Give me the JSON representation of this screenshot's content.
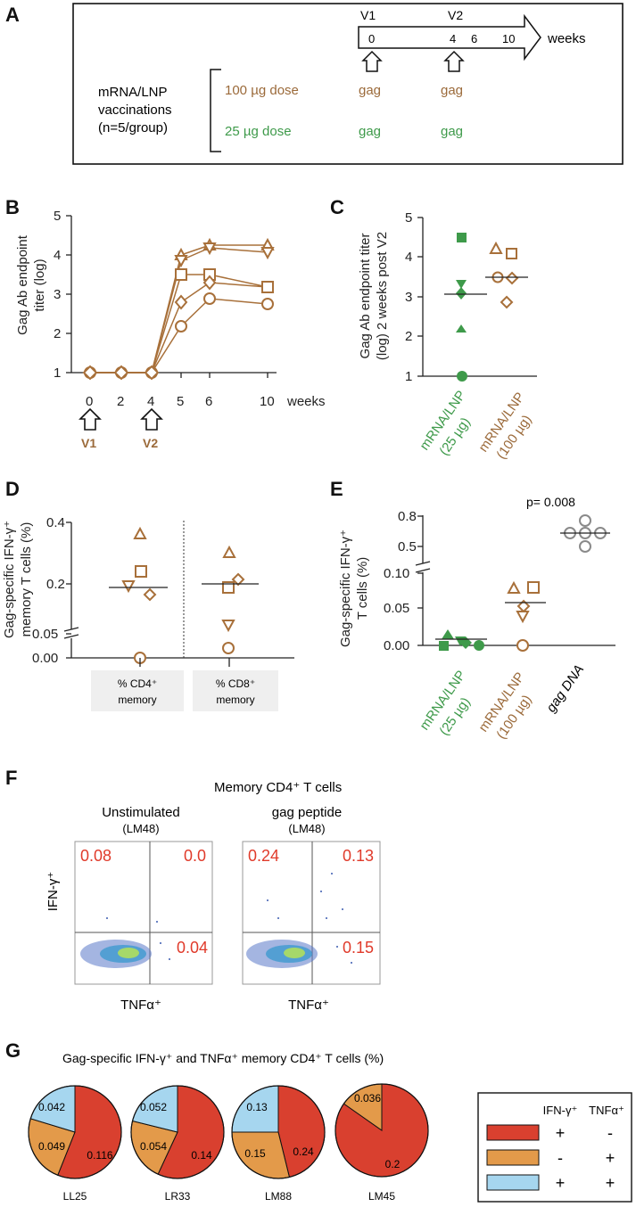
{
  "panelA": {
    "label": "A",
    "v1": "V1",
    "v2": "V2",
    "ticks": [
      "0",
      "4",
      "6",
      "10"
    ],
    "weeks": "weeks",
    "vacc_lines": [
      "mRNA/LNP",
      "vaccinations",
      "(n=5/group)"
    ],
    "dose100": "100 µg dose",
    "dose25": "25 µg dose",
    "gag": "gag"
  },
  "panelB": {
    "label": "B",
    "ylabel": [
      "Gag Ab endpoint",
      "titer (log)"
    ],
    "yticks": [
      "1",
      "2",
      "3",
      "4",
      "5"
    ],
    "xticks": [
      "0",
      "2",
      "4",
      "5",
      "6",
      "10"
    ],
    "xunit": "weeks",
    "v1": "V1",
    "v2": "V2"
  },
  "panelC": {
    "label": "C",
    "ylabel": [
      "Gag Ab endpoint titer",
      "(log) 2 weeks post V2"
    ],
    "yticks": [
      "1",
      "2",
      "3",
      "4",
      "5"
    ],
    "g1": [
      "mRNA/LNP",
      "(25 µg)"
    ],
    "g2": [
      "mRNA/LNP",
      "(100 µg)"
    ]
  },
  "panelD": {
    "label": "D",
    "ylabel": [
      "Gag-specific IFN-γ⁺",
      "memory T cells (%)"
    ],
    "yticks": [
      "0.00",
      "0.05",
      "0.2",
      "0.4"
    ],
    "x1": [
      "% CD4⁺",
      "memory"
    ],
    "x2": [
      "% CD8⁺",
      "memory"
    ]
  },
  "panelE": {
    "label": "E",
    "ylabel": [
      "Gag-specific IFN-γ⁺",
      "T cells (%)"
    ],
    "yticks": [
      "0.00",
      "0.05",
      "0.10",
      "0.5",
      "0.8"
    ],
    "pval": "p= 0.008",
    "g1": [
      "mRNA/LNP",
      "(25 µg)"
    ],
    "g2": [
      "mRNA/LNP",
      "(100 µg)"
    ],
    "g3": "gag DNA"
  },
  "panelF": {
    "label": "F",
    "title": "Memory CD4⁺ T cells",
    "left_title": "Unstimulated",
    "left_sub": "(LM48)",
    "right_title": "gag peptide",
    "right_sub": "(LM48)",
    "left_q": [
      "0.08",
      "0.0",
      "0.04"
    ],
    "right_q": [
      "0.24",
      "0.13",
      "0.15"
    ],
    "ylab": "IFN-γ⁺",
    "xlab": "TNFα⁺"
  },
  "panelG": {
    "label": "G",
    "title": "Gag-specific IFN-γ⁺ and TNFα⁺ memory CD4⁺ T cells (%)",
    "pies": [
      {
        "name": "LL25",
        "red": "0.116",
        "orange": "0.049",
        "blue": "0.042"
      },
      {
        "name": "LR33",
        "red": "0.14",
        "orange": "0.054",
        "blue": "0.052"
      },
      {
        "name": "LM88",
        "red": "0.24",
        "orange": "0.15",
        "blue": "0.13"
      },
      {
        "name": "LM45",
        "red": "0.2",
        "orange": "0.036"
      }
    ],
    "legend": {
      "h1": "IFN-γ⁺",
      "h2": "TNFα⁺",
      "rows": [
        [
          "+",
          "-"
        ],
        [
          "-",
          "+"
        ],
        [
          "+",
          "+"
        ]
      ]
    },
    "colors": {
      "red": "#d9402f",
      "orange": "#e39a4a",
      "blue": "#a6d6ef"
    }
  }
}
